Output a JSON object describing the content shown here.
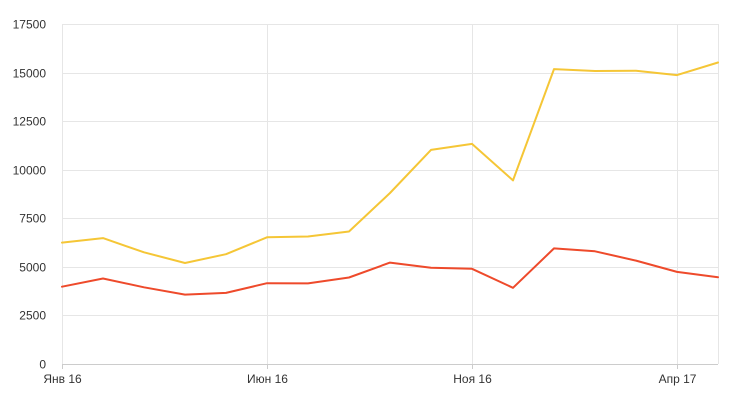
{
  "chart_data": {
    "type": "line",
    "title": "",
    "xlabel": "",
    "ylabel": "",
    "ylim": [
      0,
      17500
    ],
    "y_ticks": [
      0,
      2500,
      5000,
      7500,
      10000,
      12500,
      15000,
      17500
    ],
    "y_tick_labels": [
      "0",
      "2500",
      "5000",
      "7500",
      "10000",
      "12500",
      "15000",
      "17500"
    ],
    "x": [
      "2016-01",
      "2016-02",
      "2016-03",
      "2016-04",
      "2016-05",
      "2016-06",
      "2016-07",
      "2016-08",
      "2016-09",
      "2016-10",
      "2016-11",
      "2016-12",
      "2017-01",
      "2017-02",
      "2017-03",
      "2017-04",
      "2017-05"
    ],
    "x_ticks": [
      {
        "x": "2016-01",
        "label": "Янв 16"
      },
      {
        "x": "2016-06",
        "label": "Июн 16"
      },
      {
        "x": "2016-11",
        "label": "Ноя 16"
      },
      {
        "x": "2017-04",
        "label": "Апр 17"
      }
    ],
    "grid": true,
    "legend": "none",
    "series": [
      {
        "color": "#f5c636",
        "values": [
          6250,
          6480,
          5750,
          5200,
          5650,
          6520,
          6560,
          6820,
          8800,
          11020,
          11330,
          9450,
          15180,
          15080,
          15090,
          14870,
          15520
        ]
      },
      {
        "color": "#ee4a2b",
        "values": [
          3980,
          4400,
          3950,
          3570,
          3660,
          4160,
          4150,
          4450,
          5220,
          4950,
          4900,
          3920,
          5950,
          5800,
          5320,
          4740,
          4470
        ]
      }
    ]
  }
}
